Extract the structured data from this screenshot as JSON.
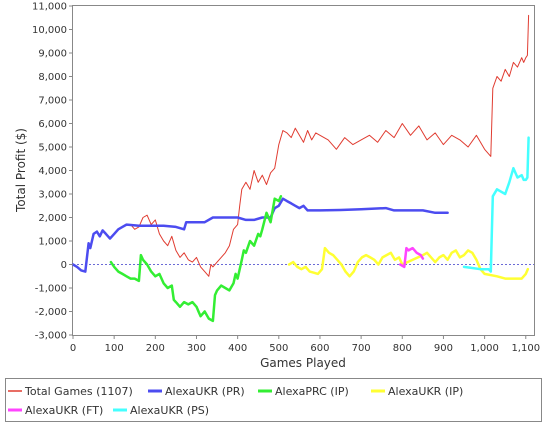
{
  "chart_data": {
    "type": "line",
    "title": "",
    "xlabel": "Games Played",
    "ylabel": "Total Profit ($)",
    "xlim": [
      0,
      1120
    ],
    "ylim": [
      -3000,
      11000
    ],
    "grid": false,
    "legend_position": "bottom",
    "x_ticks": [
      0,
      100,
      200,
      300,
      400,
      500,
      600,
      700,
      800,
      900,
      1000,
      1100
    ],
    "x_tick_labels": [
      "0",
      "100",
      "200",
      "300",
      "400",
      "500",
      "600",
      "700",
      "800",
      "900",
      "1,000",
      "1,100"
    ],
    "y_ticks": [
      -3000,
      -2000,
      -1000,
      0,
      1000,
      2000,
      3000,
      4000,
      5000,
      6000,
      7000,
      8000,
      9000,
      10000,
      11000
    ],
    "y_tick_labels": [
      "-3,000",
      "-2,000",
      "-1,000",
      "0",
      "1,000",
      "2,000",
      "3,000",
      "4,000",
      "5,000",
      "6,000",
      "7,000",
      "8,000",
      "9,000",
      "10,000",
      "11,000"
    ],
    "zero_line_color": "#6b6bd6",
    "series": [
      {
        "name": "Total Games (1107)",
        "color": "#e03c31",
        "width": 1,
        "x": [
          0,
          10,
          20,
          30,
          38,
          42,
          50,
          58,
          65,
          72,
          80,
          90,
          100,
          110,
          120,
          130,
          140,
          150,
          160,
          170,
          180,
          190,
          200,
          210,
          220,
          230,
          240,
          250,
          260,
          270,
          280,
          290,
          300,
          310,
          320,
          330,
          335,
          340,
          350,
          360,
          370,
          380,
          390,
          400,
          405,
          410,
          420,
          430,
          440,
          450,
          460,
          470,
          480,
          490,
          500,
          510,
          520,
          530,
          540,
          550,
          560,
          570,
          580,
          590,
          600,
          620,
          640,
          660,
          680,
          700,
          720,
          740,
          760,
          780,
          800,
          820,
          840,
          860,
          880,
          900,
          920,
          940,
          960,
          980,
          1000,
          1015,
          1020,
          1030,
          1040,
          1050,
          1060,
          1070,
          1080,
          1090,
          1095,
          1100,
          1104,
          1107
        ],
        "y": [
          0,
          -100,
          -250,
          -300,
          900,
          700,
          1300,
          1400,
          1200,
          1450,
          1300,
          1100,
          1300,
          1500,
          1600,
          1700,
          1700,
          1500,
          1600,
          2000,
          2100,
          1700,
          1900,
          1300,
          1000,
          800,
          1200,
          600,
          300,
          500,
          200,
          100,
          300,
          -100,
          -300,
          -500,
          0,
          -100,
          100,
          300,
          500,
          800,
          1500,
          1700,
          2500,
          3200,
          3500,
          3200,
          4000,
          3500,
          3800,
          3400,
          3900,
          4100,
          5100,
          5700,
          5600,
          5400,
          5800,
          5500,
          5200,
          5700,
          5300,
          5600,
          5500,
          5300,
          4900,
          5400,
          5100,
          5300,
          5500,
          5200,
          5700,
          5400,
          6000,
          5500,
          5900,
          5300,
          5600,
          5100,
          5500,
          5300,
          5000,
          5500,
          4900,
          4600,
          7500,
          8000,
          7800,
          8300,
          8000,
          8600,
          8400,
          8800,
          8600,
          8800,
          8900,
          10600
        ]
      },
      {
        "name": "AlexaUKR (PR)",
        "color": "#4c4cf0",
        "width": 2.5,
        "x": [
          0,
          10,
          20,
          30,
          38,
          42,
          50,
          58,
          65,
          72,
          80,
          90,
          100,
          110,
          120,
          130,
          160,
          190,
          220,
          250,
          270,
          275,
          280,
          300,
          320,
          340,
          360,
          380,
          400,
          420,
          440,
          460,
          480,
          490,
          500,
          510,
          520,
          530,
          540,
          550,
          560,
          570,
          600,
          650,
          700,
          760,
          780,
          800,
          850,
          880,
          900,
          910
        ],
        "y": [
          0,
          -100,
          -250,
          -300,
          900,
          700,
          1300,
          1400,
          1200,
          1450,
          1300,
          1100,
          1300,
          1500,
          1600,
          1700,
          1650,
          1650,
          1650,
          1600,
          1500,
          1800,
          1800,
          1800,
          1800,
          2000,
          2000,
          2000,
          2000,
          1900,
          1900,
          2000,
          2000,
          2400,
          2500,
          2800,
          2700,
          2600,
          2500,
          2400,
          2500,
          2300,
          2300,
          2320,
          2350,
          2400,
          2300,
          2300,
          2300,
          2200,
          2200,
          2200
        ]
      },
      {
        "name": "AlexaPRC (IP)",
        "color": "#33ee33",
        "width": 2.5,
        "x": [
          92,
          100,
          110,
          120,
          130,
          140,
          150,
          160,
          165,
          170,
          180,
          190,
          200,
          210,
          220,
          230,
          240,
          245,
          250,
          260,
          270,
          280,
          290,
          300,
          305,
          310,
          320,
          330,
          340,
          345,
          350,
          360,
          370,
          380,
          390,
          395,
          400,
          410,
          415,
          420,
          430,
          440,
          450,
          455,
          460,
          470,
          480,
          490,
          500,
          505
        ],
        "y": [
          100,
          -100,
          -300,
          -400,
          -500,
          -600,
          -600,
          -700,
          400,
          200,
          0,
          -300,
          -500,
          -400,
          -800,
          -1000,
          -900,
          -1500,
          -1600,
          -1800,
          -1600,
          -1700,
          -1600,
          -1800,
          -2000,
          -2200,
          -2000,
          -2300,
          -2400,
          -1300,
          -1100,
          -900,
          -1000,
          -1100,
          -800,
          -400,
          -600,
          200,
          600,
          500,
          1000,
          800,
          1300,
          1200,
          1500,
          2200,
          1800,
          2800,
          2700,
          2900
        ]
      },
      {
        "name": "AlexaUKR (IP)",
        "color": "#ffff33",
        "width": 2.5,
        "x": [
          525,
          535,
          545,
          555,
          565,
          575,
          585,
          595,
          605,
          612,
          622,
          632,
          642,
          652,
          662,
          672,
          682,
          692,
          702,
          712,
          722,
          732,
          742,
          752,
          762,
          772,
          782,
          792,
          800,
          850,
          860,
          870,
          880,
          890,
          900,
          910,
          920,
          930,
          940,
          950,
          960,
          970,
          980,
          990,
          1000,
          1030,
          1050,
          1070,
          1090,
          1100,
          1105
        ],
        "y": [
          0,
          100,
          -100,
          -200,
          -100,
          -300,
          -350,
          -400,
          -200,
          700,
          500,
          400,
          200,
          0,
          -300,
          -500,
          -300,
          100,
          300,
          400,
          300,
          200,
          0,
          300,
          400,
          500,
          200,
          300,
          0,
          400,
          500,
          300,
          100,
          300,
          400,
          200,
          500,
          600,
          300,
          400,
          600,
          500,
          200,
          -200,
          -400,
          -500,
          -600,
          -600,
          -600,
          -400,
          -200
        ]
      },
      {
        "name": "AlexaUKR (FT)",
        "color": "#ff44ff",
        "width": 2.5,
        "x": [
          795,
          805,
          810,
          815,
          825,
          835,
          845,
          850
        ],
        "y": [
          0,
          -100,
          700,
          600,
          700,
          500,
          400,
          250
        ]
      },
      {
        "name": "AlexaUKR (PS)",
        "color": "#44ffff",
        "width": 2.5,
        "x": [
          950,
          970,
          990,
          1010,
          1015,
          1020,
          1030,
          1040,
          1050,
          1060,
          1070,
          1080,
          1090,
          1095,
          1100,
          1104,
          1107
        ],
        "y": [
          -100,
          -150,
          -200,
          -200,
          -300,
          2900,
          3200,
          3100,
          3000,
          3500,
          4100,
          3700,
          3800,
          3600,
          3600,
          3700,
          5400
        ]
      }
    ]
  }
}
